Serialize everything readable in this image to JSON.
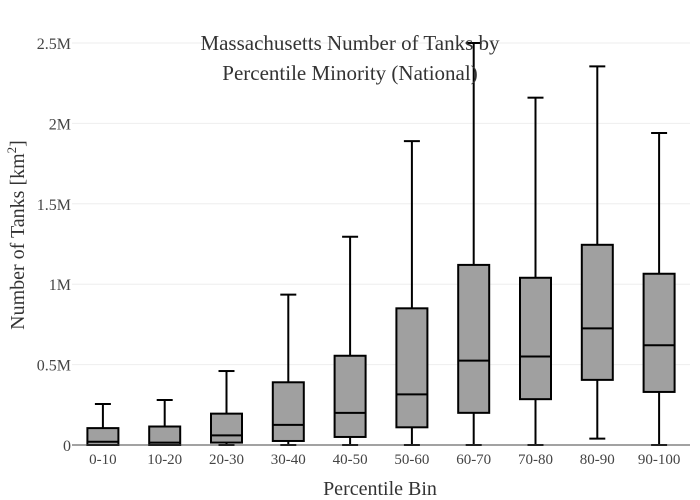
{
  "chart_data": {
    "type": "box",
    "title": "Massachusetts Number of Tanks by Percentile Minority (National)",
    "title_lines": [
      "Massachusetts Number of Tanks by",
      "Percentile Minority (National)"
    ],
    "xlabel": "Percentile Bin",
    "ylabel": "Number of Tanks  [km",
    "ylabel_sup": "2",
    "ylabel_close": "]",
    "ylim": [
      0,
      2500000
    ],
    "yticks": [
      {
        "value": 0,
        "label": "0"
      },
      {
        "value": 500000,
        "label": "0.5M"
      },
      {
        "value": 1000000,
        "label": "1M"
      },
      {
        "value": 1500000,
        "label": "1.5M"
      },
      {
        "value": 2000000,
        "label": "2M"
      },
      {
        "value": 2500000,
        "label": "2.5M"
      }
    ],
    "grid": true,
    "box_fill": "#a0a0a0",
    "box_stroke": "#000000",
    "categories": [
      "0-10",
      "10-20",
      "20-30",
      "30-40",
      "40-50",
      "50-60",
      "60-70",
      "70-80",
      "80-90",
      "90-100"
    ],
    "boxes": [
      {
        "min": 0,
        "q1": 0,
        "median": 20000,
        "q3": 105000,
        "max": 255000
      },
      {
        "min": 0,
        "q1": 0,
        "median": 15000,
        "q3": 115000,
        "max": 280000
      },
      {
        "min": 0,
        "q1": 15000,
        "median": 60000,
        "q3": 195000,
        "max": 460000
      },
      {
        "min": 0,
        "q1": 25000,
        "median": 125000,
        "q3": 390000,
        "max": 935000
      },
      {
        "min": 0,
        "q1": 50000,
        "median": 200000,
        "q3": 555000,
        "max": 1295000
      },
      {
        "min": 0,
        "q1": 110000,
        "median": 315000,
        "q3": 850000,
        "max": 1890000
      },
      {
        "min": 0,
        "q1": 200000,
        "median": 525000,
        "q3": 1120000,
        "max": 2500000
      },
      {
        "min": 0,
        "q1": 285000,
        "median": 550000,
        "q3": 1040000,
        "max": 2160000
      },
      {
        "min": 40000,
        "q1": 405000,
        "median": 725000,
        "q3": 1245000,
        "max": 2355000
      },
      {
        "min": 0,
        "q1": 330000,
        "median": 620000,
        "q3": 1065000,
        "max": 1940000
      }
    ]
  }
}
